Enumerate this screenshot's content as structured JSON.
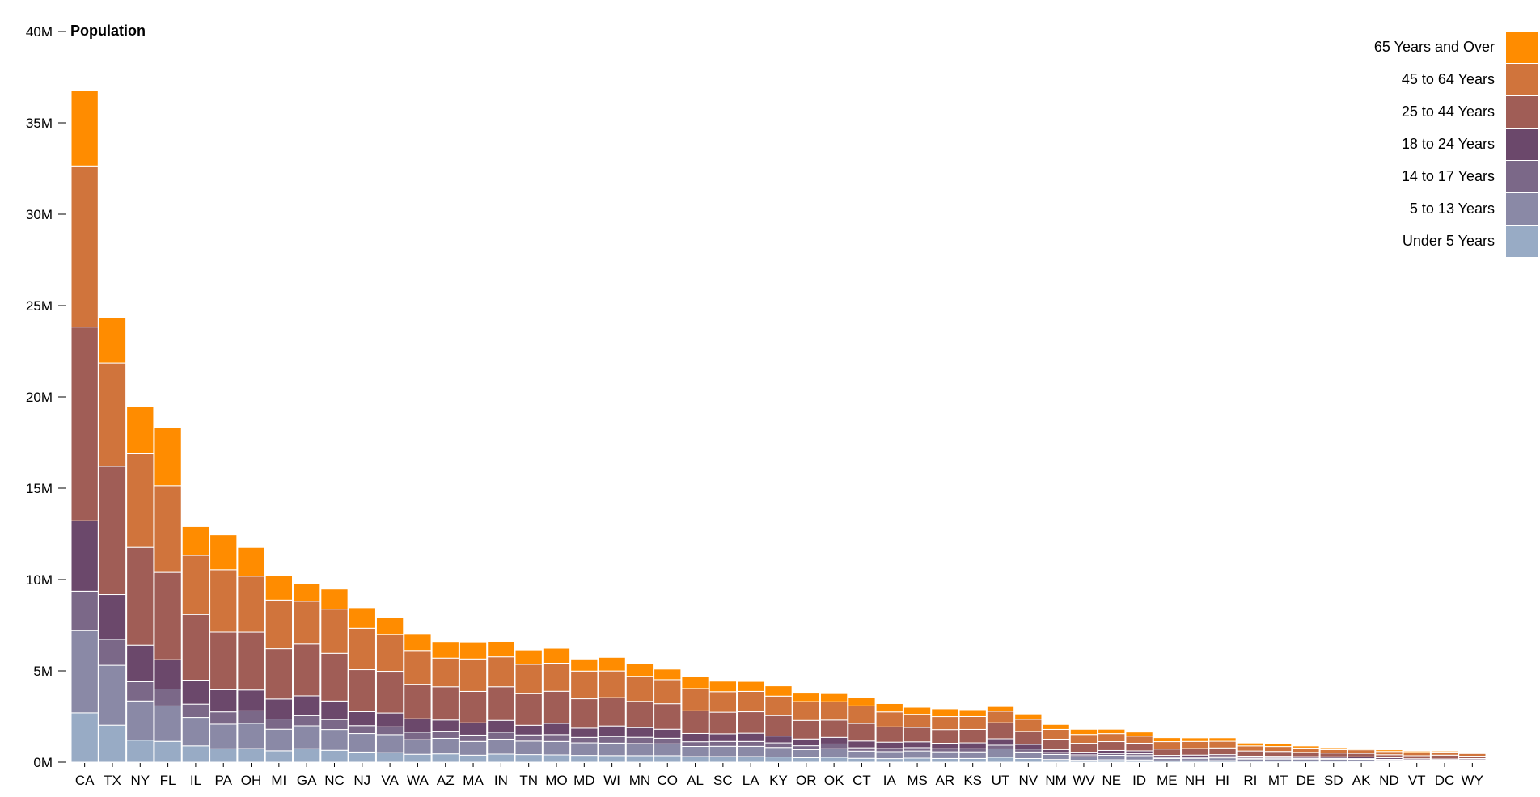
{
  "chart_data": {
    "type": "bar",
    "stacked": true,
    "ylabel": "Population",
    "ylim": [
      0,
      40000000
    ],
    "y_ticks": [
      {
        "value": 0,
        "label": "0M"
      },
      {
        "value": 5000000,
        "label": "5M"
      },
      {
        "value": 10000000,
        "label": "10M"
      },
      {
        "value": 15000000,
        "label": "15M"
      },
      {
        "value": 20000000,
        "label": "20M"
      },
      {
        "value": 25000000,
        "label": "25M"
      },
      {
        "value": 30000000,
        "label": "30M"
      },
      {
        "value": 35000000,
        "label": "35M"
      },
      {
        "value": 40000000,
        "label": "40M"
      }
    ],
    "legend_position": "top-right",
    "categories": [
      "CA",
      "TX",
      "NY",
      "FL",
      "IL",
      "PA",
      "OH",
      "MI",
      "GA",
      "NC",
      "NJ",
      "VA",
      "WA",
      "AZ",
      "MA",
      "IN",
      "TN",
      "MO",
      "MD",
      "WI",
      "MN",
      "CO",
      "AL",
      "SC",
      "LA",
      "KY",
      "OR",
      "OK",
      "CT",
      "IA",
      "MS",
      "AR",
      "KS",
      "UT",
      "NV",
      "NM",
      "WV",
      "NE",
      "ID",
      "ME",
      "NH",
      "HI",
      "RI",
      "MT",
      "DE",
      "SD",
      "AK",
      "ND",
      "VT",
      "DC",
      "WY"
    ],
    "series": [
      {
        "name": "Under 5 Years",
        "color": "#98abc5",
        "values": [
          2704659,
          2027307,
          1208495,
          1140516,
          894368,
          737462,
          750146,
          625526,
          740521,
          652823,
          557421,
          522672,
          433119,
          456536,
          383568,
          443089,
          416334,
          399450,
          371787,
          362277,
          358471,
          358280,
          310504,
          311403,
          310716,
          284601,
          243117,
          266547,
          211637,
          195103,
          220813,
          202070,
          202360,
          268916,
          199175,
          148323,
          105435,
          132092,
          121746,
          71459,
          75297,
          87207,
          60934,
          59736,
          59319,
          58566,
          52083,
          41896,
          32635,
          36352,
          38253
        ]
      },
      {
        "name": "5 to 13 Years",
        "color": "#8a89a6",
        "values": [
          4499890,
          3277946,
          2141490,
          1938695,
          1558919,
          1345341,
          1373949,
          1179503,
          1250460,
          1135543,
          1011478,
          987665,
          801476,
          850630,
          753614,
          819910,
          740611,
          736726,
          688193,
          684315,
          663465,
          647676,
          552339,
          560791,
          558218,
          524121,
          449985,
          474639,
          395912,
          382694,
          393661,
          367612,
          363650,
          463426,
          359141,
          275311,
          194675,
          244095,
          237707,
          133653,
          137000,
          150781,
          111392,
          112322,
          110777,
          106441,
          100264,
          81007,
          56718,
          65150,
          69961
        ]
      },
      {
        "name": "14 to 17 Years",
        "color": "#7b6888",
        "values": [
          2159981,
          1420518,
          1058031,
          925060,
          725597,
          675624,
          691720,
          561419,
          562511,
          550509,
          433151,
          425448,
          408637,
          393564,
          348232,
          378210,
          336655,
          375173,
          297823,
          362275,
          341677,
          306579,
          259034,
          266005,
          267434,
          250112,
          208264,
          257211,
          183464,
          173952,
          184603,
          173940,
          174393,
          197613,
          166375,
          106876,
          102328,
          102327,
          103310,
          58669,
          62548,
          67400,
          48788,
          59434,
          48200,
          47666,
          42541,
          31921,
          31634,
          20718,
          30788
        ]
      },
      {
        "name": "18 to 24 Years",
        "color": "#6b486b",
        "values": [
          3853788,
          2454721,
          1999120,
          1607297,
          1311479,
          1208658,
          1134470,
          1091402,
          1077295,
          1009021,
          765153,
          759975,
          736301,
          610553,
          670243,
          649713,
          529287,
          612221,
          505245,
          575007,
          531016,
          491408,
          451680,
          415897,
          451170,
          375314,
          370614,
          359987,
          370127,
          346213,
          316962,
          296076,
          320114,
          353100,
          250966,
          164938,
          147141,
          165627,
          158961,
          109071,
          114111,
          108603,
          111504,
          94877,
          87998,
          84463,
          99186,
          87256,
          66961,
          51600,
          60026
        ]
      },
      {
        "name": "25 to 44 Years",
        "color": "#a05d56",
        "values": [
          10604510,
          7017731,
          5355235,
          4782119,
          3596343,
          3157759,
          3171806,
          2754404,
          2839467,
          2612962,
          2297744,
          2280592,
          1884111,
          1814733,
          1718758,
          1835613,
          1754211,
          1758346,
          1607744,
          1550463,
          1434002,
          1396779,
          1242021,
          1184283,
          1176066,
          1124408,
          1016823,
          950847,
          960006,
          834811,
          785617,
          745614,
          733417,
          877100,
          711908,
          566434,
          487400,
          483484,
          419263,
          350000,
          362780,
          370046,
          281843,
          261779,
          231996,
          204432,
          188945,
          166040,
          167437,
          211802,
          131618
        ]
      },
      {
        "name": "45 to 64 Years",
        "color": "#d0743c",
        "values": [
          8819342,
          5656528,
          5120254,
          4746856,
          3239173,
          3414001,
          3066221,
          2666840,
          2342970,
          2417813,
          2266922,
          2022613,
          1853001,
          1572524,
          1776830,
          1640140,
          1580600,
          1538126,
          1517752,
          1460016,
          1374814,
          1317211,
          1212939,
          1120870,
          1111969,
          1057904,
          1026185,
          997289,
          959432,
          822553,
          722211,
          712542,
          707247,
          633506,
          663293,
          532622,
          480706,
          437452,
          387642,
          402917,
          386148,
          363131,
          278451,
          270121,
          240071,
          188430,
          198155,
          178603,
          178919,
          165138,
          146495
        ]
      },
      {
        "name": "65 Years and Over",
        "color": "#ff8c00",
        "values": [
          4114496,
          2472223,
          2607672,
          3187797,
          1575308,
          1910571,
          1570837,
          1352259,
          981024,
          1103071,
          1124864,
          903739,
          926013,
          908311,
          937346,
          849000,
          787546,
          817802,
          662200,
          745013,
          688011,
          578256,
          639426,
          576130,
          546101,
          560346,
          509036,
          491823,
          479193,
          453592,
          383912,
          425474,
          376369,
          252756,
          296717,
          272699,
          284119,
          240847,
          223012,
          217979,
          195678,
          189876,
          161109,
          143814,
          113418,
          107586,
          60503,
          91900,
          75424,
          60862,
          58961
        ]
      }
    ]
  }
}
